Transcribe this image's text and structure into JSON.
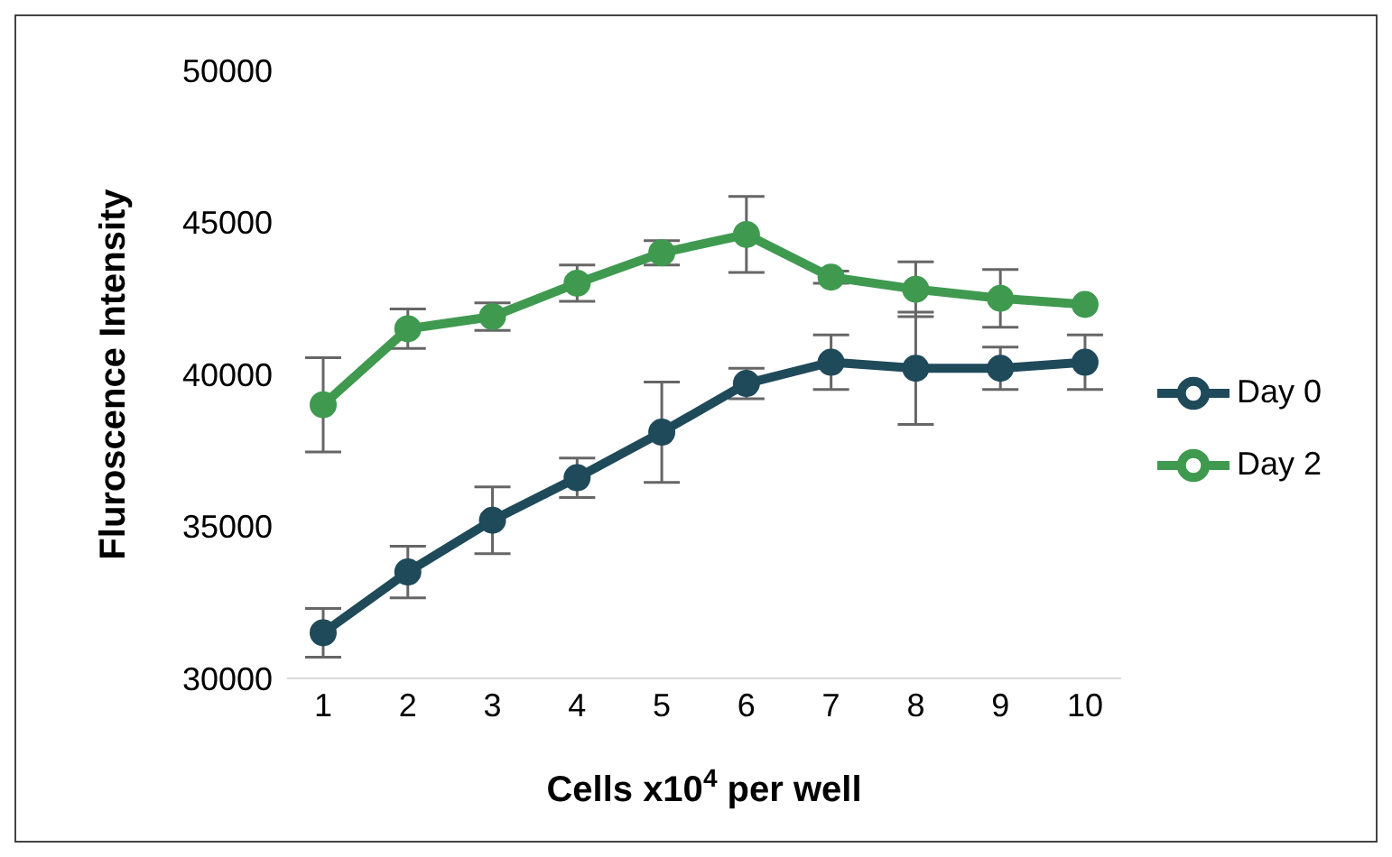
{
  "chart_data": {
    "type": "line",
    "xlabel": "Cells x10$^{4}$ per well",
    "ylabel": "Fluroscence Intensity",
    "categories": [
      "1",
      "2",
      "3",
      "4",
      "5",
      "6",
      "7",
      "8",
      "9",
      "10"
    ],
    "series": [
      {
        "name": "Day 0",
        "color": "#1f4a5a",
        "values": [
          31500,
          33500,
          35200,
          36600,
          38100,
          39700,
          40400,
          40200,
          40200,
          40400
        ],
        "errors": [
          800,
          850,
          1100,
          650,
          1650,
          500,
          900,
          1850,
          700,
          900
        ]
      },
      {
        "name": "Day 2",
        "color": "#3f9a50",
        "values": [
          39000,
          41500,
          41900,
          43000,
          44000,
          44600,
          43200,
          42800,
          42500,
          42300
        ],
        "errors": [
          1550,
          650,
          450,
          600,
          400,
          1250,
          200,
          900,
          950,
          null
        ]
      }
    ],
    "ylim": [
      30000,
      50000
    ],
    "yticks": [
      30000,
      35000,
      40000,
      45000,
      50000
    ],
    "grid": false,
    "legend": "right",
    "marker": "circle",
    "line_style": "solid"
  }
}
